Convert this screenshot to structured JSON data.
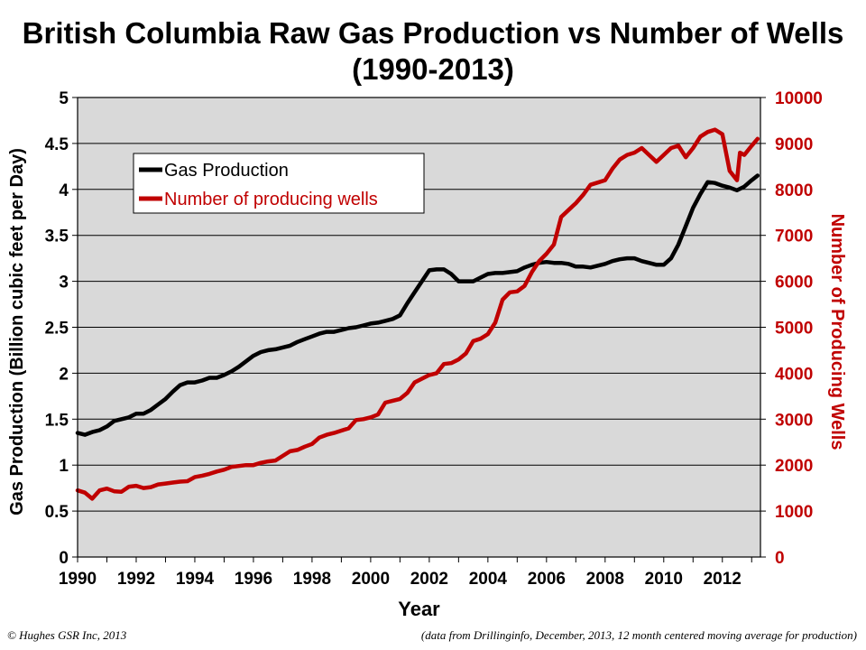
{
  "title_line1": "British Columbia Raw Gas Production vs Number of Wells",
  "title_line2": "(1990-2013)",
  "footer_left": "© Hughes GSR Inc, 2013",
  "footer_right": "(data from Drillinginfo, December, 2013, 12 month centered moving average for production)",
  "chart_data": {
    "type": "line",
    "xlabel": "Year",
    "ylabel": "Gas Production (Billion cubic feet per Day)",
    "y2label": "Number of Producing Wells",
    "xlim": [
      1990,
      2013.3
    ],
    "ylim": [
      0,
      5
    ],
    "y2lim": [
      0,
      10000
    ],
    "xticks": [
      "1990",
      "1992",
      "1994",
      "1996",
      "1998",
      "2000",
      "2002",
      "2004",
      "2006",
      "2008",
      "2010",
      "2012"
    ],
    "yticks": [
      "0",
      "0.5",
      "1",
      "1.5",
      "2",
      "2.5",
      "3",
      "3.5",
      "4",
      "4.5",
      "5"
    ],
    "y2ticks": [
      "0",
      "1000",
      "2000",
      "3000",
      "4000",
      "5000",
      "6000",
      "7000",
      "8000",
      "9000",
      "10000"
    ],
    "grid": true,
    "plot_background": "#d9d9d9",
    "legend_position": "upper-left",
    "series": [
      {
        "name": "Gas Production",
        "axis": "left",
        "color": "#000000",
        "x": [
          1990.0,
          1990.25,
          1990.5,
          1990.75,
          1991.0,
          1991.25,
          1991.5,
          1991.75,
          1992.0,
          1992.25,
          1992.5,
          1992.75,
          1993.0,
          1993.25,
          1993.5,
          1993.75,
          1994.0,
          1994.25,
          1994.5,
          1994.75,
          1995.0,
          1995.25,
          1995.5,
          1995.75,
          1996.0,
          1996.25,
          1996.5,
          1996.75,
          1997.0,
          1997.25,
          1997.5,
          1997.75,
          1998.0,
          1998.25,
          1998.5,
          1998.75,
          1999.0,
          1999.25,
          1999.5,
          1999.75,
          2000.0,
          2000.25,
          2000.5,
          2000.75,
          2001.0,
          2001.25,
          2001.5,
          2001.75,
          2002.0,
          2002.25,
          2002.5,
          2002.75,
          2003.0,
          2003.25,
          2003.5,
          2003.75,
          2004.0,
          2004.25,
          2004.5,
          2004.75,
          2005.0,
          2005.25,
          2005.5,
          2005.75,
          2006.0,
          2006.25,
          2006.5,
          2006.75,
          2007.0,
          2007.25,
          2007.5,
          2007.75,
          2008.0,
          2008.25,
          2008.5,
          2008.75,
          2009.0,
          2009.25,
          2009.5,
          2009.75,
          2010.0,
          2010.25,
          2010.5,
          2010.75,
          2011.0,
          2011.25,
          2011.5,
          2011.75,
          2012.0,
          2012.25,
          2012.5,
          2012.75,
          2013.0,
          2013.2
        ],
        "values": [
          1.35,
          1.33,
          1.36,
          1.38,
          1.42,
          1.48,
          1.5,
          1.52,
          1.56,
          1.56,
          1.6,
          1.66,
          1.72,
          1.8,
          1.87,
          1.9,
          1.9,
          1.92,
          1.95,
          1.95,
          1.98,
          2.02,
          2.07,
          2.13,
          2.19,
          2.23,
          2.25,
          2.26,
          2.28,
          2.3,
          2.34,
          2.37,
          2.4,
          2.43,
          2.45,
          2.45,
          2.47,
          2.49,
          2.5,
          2.52,
          2.54,
          2.55,
          2.57,
          2.59,
          2.63,
          2.76,
          2.88,
          3.0,
          3.12,
          3.13,
          3.13,
          3.08,
          3.0,
          3.0,
          3.0,
          3.04,
          3.08,
          3.09,
          3.09,
          3.1,
          3.11,
          3.15,
          3.18,
          3.2,
          3.21,
          3.2,
          3.2,
          3.19,
          3.16,
          3.16,
          3.15,
          3.17,
          3.19,
          3.22,
          3.24,
          3.25,
          3.25,
          3.22,
          3.2,
          3.18,
          3.18,
          3.25,
          3.4,
          3.6,
          3.8,
          3.95,
          4.08,
          4.07,
          4.04,
          4.02,
          3.99,
          4.03,
          4.1,
          4.15
        ]
      },
      {
        "name": "Number of producing wells",
        "axis": "right",
        "color": "#c00000",
        "x": [
          1990.0,
          1990.25,
          1990.5,
          1990.75,
          1991.0,
          1991.25,
          1991.5,
          1991.75,
          1992.0,
          1992.25,
          1992.5,
          1992.75,
          1993.0,
          1993.25,
          1993.5,
          1993.75,
          1994.0,
          1994.25,
          1994.5,
          1994.75,
          1995.0,
          1995.25,
          1995.5,
          1995.75,
          1996.0,
          1996.25,
          1996.5,
          1996.75,
          1997.0,
          1997.25,
          1997.5,
          1997.75,
          1998.0,
          1998.25,
          1998.5,
          1998.75,
          1999.0,
          1999.25,
          1999.5,
          1999.75,
          2000.0,
          2000.25,
          2000.5,
          2000.75,
          2001.0,
          2001.25,
          2001.5,
          2001.75,
          2002.0,
          2002.25,
          2002.5,
          2002.75,
          2003.0,
          2003.25,
          2003.5,
          2003.75,
          2004.0,
          2004.25,
          2004.5,
          2004.75,
          2005.0,
          2005.25,
          2005.5,
          2005.75,
          2006.0,
          2006.25,
          2006.5,
          2006.75,
          2007.0,
          2007.25,
          2007.5,
          2007.75,
          2008.0,
          2008.25,
          2008.5,
          2008.75,
          2009.0,
          2009.25,
          2009.5,
          2009.75,
          2010.0,
          2010.25,
          2010.5,
          2010.75,
          2011.0,
          2011.25,
          2011.5,
          2011.75,
          2012.0,
          2012.25,
          2012.5,
          2012.6,
          2012.75,
          2013.0,
          2013.2
        ],
        "values": [
          1450,
          1400,
          1270,
          1450,
          1490,
          1430,
          1420,
          1530,
          1550,
          1500,
          1520,
          1580,
          1600,
          1620,
          1640,
          1650,
          1740,
          1770,
          1810,
          1860,
          1900,
          1960,
          1980,
          2000,
          2000,
          2050,
          2080,
          2100,
          2200,
          2300,
          2330,
          2400,
          2460,
          2600,
          2660,
          2700,
          2750,
          2800,
          2980,
          3000,
          3040,
          3100,
          3360,
          3400,
          3440,
          3570,
          3800,
          3880,
          3960,
          4000,
          4200,
          4220,
          4300,
          4430,
          4700,
          4750,
          4850,
          5100,
          5600,
          5760,
          5780,
          5900,
          6200,
          6440,
          6600,
          6800,
          7400,
          7550,
          7700,
          7880,
          8100,
          8150,
          8200,
          8450,
          8650,
          8750,
          8800,
          8900,
          8750,
          8600,
          8750,
          8900,
          8950,
          8700,
          8900,
          9150,
          9250,
          9300,
          9200,
          8400,
          8200,
          8800,
          8750,
          8950,
          9100
        ]
      }
    ]
  }
}
